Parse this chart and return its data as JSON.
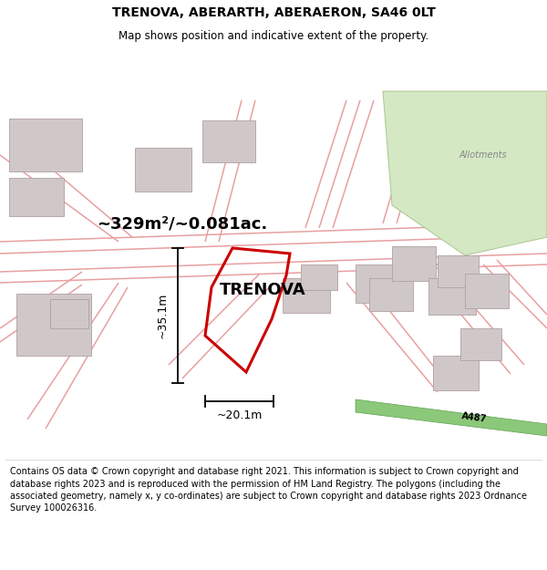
{
  "title": "TRENOVA, ABERARTH, ABERAERON, SA46 0LT",
  "subtitle": "Map shows position and indicative extent of the property.",
  "area_label": "~329m²/~0.081ac.",
  "property_label": "TRENOVA",
  "dim_width": "~20.1m",
  "dim_height": "~35.1m",
  "allotments_label": "Allotments",
  "road_label": "A487",
  "footer": "Contains OS data © Crown copyright and database right 2021. This information is subject to Crown copyright and database rights 2023 and is reproduced with the permission of HM Land Registry. The polygons (including the associated geometry, namely x, y co-ordinates) are subject to Crown copyright and database rights 2023 Ordnance Survey 100026316.",
  "map_bg": "#f0ebeb",
  "property_color": "#cc0000",
  "allotment_color": "#d4e8c4",
  "road_green_color": "#8cc87a",
  "title_fontsize": 10,
  "subtitle_fontsize": 8.5,
  "footer_fontsize": 7.0
}
